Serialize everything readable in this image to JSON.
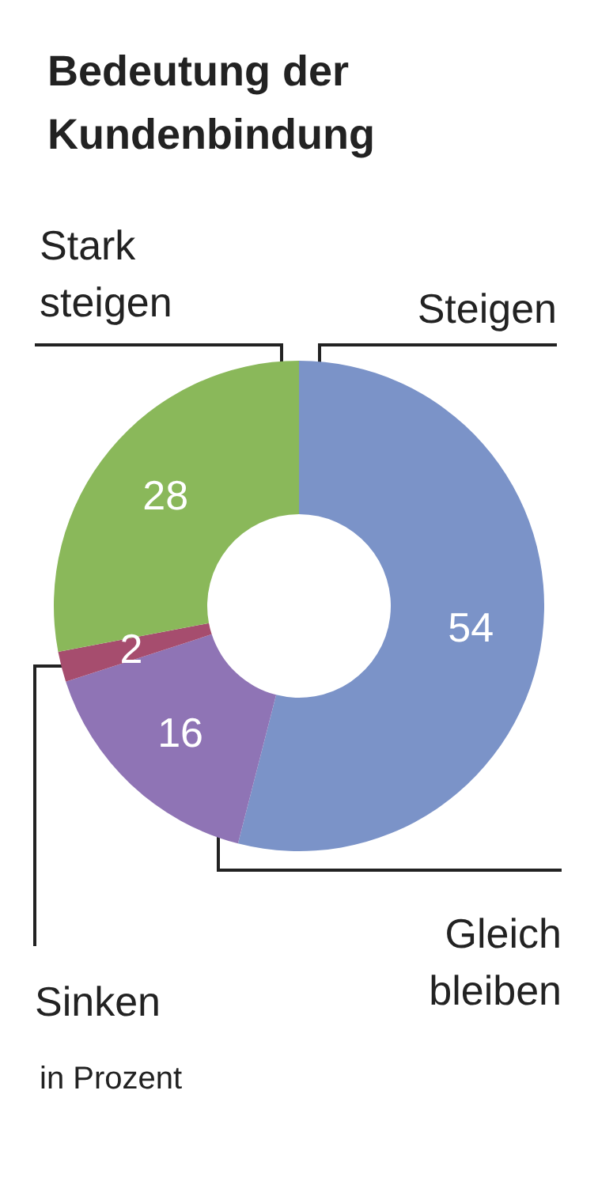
{
  "chart_data": {
    "type": "donut",
    "title": "Bedeutung der Kundenbindung",
    "categories": [
      "Steigen",
      "Gleich bleiben",
      "Sinken",
      "Stark steigen"
    ],
    "values": [
      54,
      16,
      2,
      28
    ],
    "colors": [
      "#7b93c8",
      "#8f74b5",
      "#a64d6e",
      "#8ab85a"
    ],
    "data_labels": true,
    "legend": false,
    "annotations": [
      "in Prozent"
    ]
  }
}
